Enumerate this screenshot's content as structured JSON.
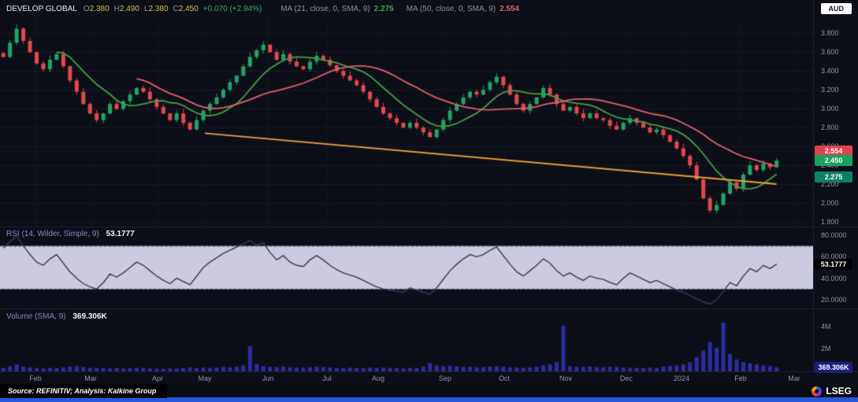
{
  "header": {
    "symbol": "DEVELOP GLOBAL",
    "o_label": "O",
    "o_value": "2.380",
    "h_label": "H",
    "h_value": "2.490",
    "l_label": "L",
    "l_value": "2.380",
    "c_label": "C",
    "c_value": "2.450",
    "change": "+0.070 (+2.94%)",
    "ma21_label": "MA (21, close, 0, SMA, 9)",
    "ma21_value": "2.275",
    "ma50_label": "MA (50, close, 0, SMA, 9)",
    "ma50_value": "2.554",
    "currency": "AUD"
  },
  "colors": {
    "up": "#1fa567",
    "down": "#e5484d",
    "ma21": "#43a047",
    "ma50": "#e0606e",
    "trendline": "#f0a13c",
    "volume_bar": "#2d2da2",
    "rsi_line": "#3a3a52",
    "rsi_band": "#dcd8ee",
    "rsi_band_edge": "#8d89b8",
    "grid": "#171b27",
    "grid_v": "#141722",
    "accent_blue_bar": "#2458d8"
  },
  "price_axis": {
    "min": 1.75,
    "max": 3.97,
    "tick_labels": [
      "3.800",
      "3.600",
      "3.400",
      "3.200",
      "3.000",
      "2.800",
      "2.600",
      "2.400",
      "2.200",
      "2.000",
      "1.800"
    ],
    "tick_values": [
      3.8,
      3.6,
      3.4,
      3.2,
      3.0,
      2.8,
      2.6,
      2.4,
      2.2,
      2.0,
      1.8
    ],
    "badges": [
      {
        "label": "2.554",
        "value": 2.554,
        "color": "#e0434e"
      },
      {
        "label": "2.450",
        "value": 2.45,
        "color": "#1aa05f"
      },
      {
        "label": "2.275",
        "value": 2.275,
        "color": "#0f8066"
      }
    ]
  },
  "rsi_panel": {
    "legend": "RSI (14, Wilder, Simple, 9)",
    "legend_value": "53.1777",
    "min": 12,
    "max": 88,
    "band": [
      30,
      70
    ],
    "tick_labels": [
      "80.0000",
      "60.0000",
      "40.0000",
      "20.0000"
    ],
    "tick_values": [
      80,
      60,
      40,
      20
    ],
    "badge": {
      "label": "53.1777",
      "value": 53.1777,
      "color": "#000000"
    }
  },
  "volume_panel": {
    "legend": "Volume (SMA, 9)",
    "legend_value": "369.306K",
    "max_k": 5600,
    "tick_labels": [
      "4M",
      "2M"
    ],
    "tick_values": [
      4000,
      2000
    ],
    "badge": {
      "label": "369.306K",
      "value": 369,
      "color": "#1e1e7e"
    }
  },
  "x_axis": {
    "labels": [
      "Feb",
      "Mar",
      "Apr",
      "May",
      "Jun",
      "Jul",
      "Aug",
      "Sep",
      "Oct",
      "Nov",
      "Dec",
      "2024",
      "Feb",
      "Mar"
    ],
    "positions": [
      0.0436,
      0.1114,
      0.1938,
      0.252,
      0.3295,
      0.4022,
      0.4651,
      0.5475,
      0.6202,
      0.6957,
      0.7703,
      0.8382,
      0.9109,
      0.9767
    ]
  },
  "footer": {
    "source": "Source: REFINITIV; Analysis: Kalkine Group",
    "logo_text": "LSEG"
  },
  "chart_data": {
    "type": "candlestick",
    "title": "DEVELOP GLOBAL",
    "currency": "AUD",
    "ylim": [
      1.75,
      3.97
    ],
    "x_categories_months": [
      "Feb",
      "Mar",
      "Apr",
      "May",
      "Jun",
      "Jul",
      "Aug",
      "Sep",
      "Oct",
      "Nov",
      "Dec",
      "2024",
      "Feb",
      "Mar"
    ],
    "ohlc_last": {
      "open": 2.38,
      "high": 2.49,
      "low": 2.38,
      "close": 2.45,
      "change": "+0.070",
      "change_pct": "+2.94%"
    },
    "close": [
      3.55,
      3.7,
      3.85,
      3.72,
      3.6,
      3.48,
      3.42,
      3.52,
      3.58,
      3.45,
      3.3,
      3.18,
      3.05,
      2.95,
      2.88,
      2.95,
      3.05,
      3.0,
      3.08,
      3.15,
      3.22,
      3.18,
      3.1,
      3.02,
      2.95,
      2.88,
      2.95,
      2.85,
      2.78,
      2.88,
      2.98,
      3.05,
      3.12,
      3.2,
      3.28,
      3.35,
      3.45,
      3.55,
      3.62,
      3.68,
      3.6,
      3.52,
      3.58,
      3.5,
      3.45,
      3.42,
      3.5,
      3.56,
      3.52,
      3.46,
      3.4,
      3.35,
      3.3,
      3.25,
      3.18,
      3.1,
      3.02,
      2.95,
      2.9,
      2.85,
      2.8,
      2.85,
      2.8,
      2.75,
      2.7,
      2.78,
      2.88,
      2.98,
      3.05,
      3.12,
      3.18,
      3.15,
      3.2,
      3.28,
      3.34,
      3.25,
      3.15,
      3.05,
      2.98,
      3.05,
      3.12,
      3.22,
      3.15,
      3.05,
      2.98,
      3.02,
      2.95,
      2.9,
      2.95,
      2.9,
      2.88,
      2.82,
      2.78,
      2.85,
      2.9,
      2.85,
      2.8,
      2.75,
      2.78,
      2.72,
      2.65,
      2.58,
      2.5,
      2.4,
      2.25,
      2.05,
      1.92,
      1.98,
      2.1,
      2.22,
      2.15,
      2.3,
      2.4,
      2.35,
      2.42,
      2.38,
      2.45
    ],
    "ma_overlays": [
      {
        "name": "MA 21",
        "window_samples": 9,
        "color": "#43a047",
        "last_value": 2.275
      },
      {
        "name": "MA 50",
        "window_samples": 21,
        "color": "#e0606e",
        "last_value": 2.554
      }
    ],
    "trendline": {
      "start_frac": 0.252,
      "start_price": 2.74,
      "end_frac": 0.955,
      "end_price": 2.2,
      "color": "#f0a13c"
    },
    "rsi": [
      68,
      74,
      79,
      70,
      62,
      55,
      52,
      58,
      62,
      54,
      46,
      40,
      35,
      32,
      30,
      36,
      44,
      41,
      45,
      50,
      55,
      52,
      47,
      42,
      38,
      35,
      40,
      37,
      34,
      42,
      50,
      55,
      59,
      63,
      66,
      69,
      72,
      75,
      71,
      73,
      64,
      57,
      61,
      55,
      52,
      51,
      57,
      61,
      57,
      52,
      48,
      45,
      43,
      41,
      38,
      35,
      32,
      30,
      29,
      28,
      27,
      31,
      29,
      27,
      25,
      31,
      39,
      47,
      53,
      58,
      62,
      60,
      62,
      66,
      69,
      61,
      53,
      46,
      42,
      47,
      52,
      58,
      54,
      47,
      42,
      45,
      41,
      38,
      42,
      40,
      39,
      36,
      34,
      40,
      45,
      42,
      39,
      36,
      38,
      35,
      32,
      29,
      27,
      24,
      21,
      18,
      16,
      20,
      28,
      36,
      33,
      42,
      49,
      46,
      52,
      49,
      53.18
    ],
    "volume_k": [
      300,
      450,
      620,
      400,
      350,
      300,
      260,
      310,
      280,
      350,
      420,
      460,
      380,
      320,
      300,
      280,
      260,
      300,
      250,
      280,
      330,
      300,
      260,
      240,
      220,
      260,
      240,
      300,
      350,
      280,
      330,
      300,
      340,
      380,
      360,
      410,
      520,
      2250,
      640,
      460,
      400,
      380,
      430,
      360,
      340,
      320,
      360,
      410,
      380,
      340,
      300,
      280,
      320,
      300,
      280,
      330,
      300,
      340,
      300,
      280,
      260,
      300,
      280,
      420,
      720,
      520,
      460,
      490,
      430,
      380,
      410,
      360,
      380,
      430,
      470,
      410,
      360,
      340,
      320,
      360,
      400,
      520,
      620,
      820,
      4050,
      460,
      400,
      380,
      430,
      380,
      360,
      410,
      380,
      340,
      320,
      300,
      280,
      330,
      300,
      420,
      460,
      520,
      620,
      820,
      1250,
      1850,
      2600,
      2100,
      4350,
      1550,
      1050,
      820,
      720,
      620,
      520,
      460,
      369
    ]
  }
}
